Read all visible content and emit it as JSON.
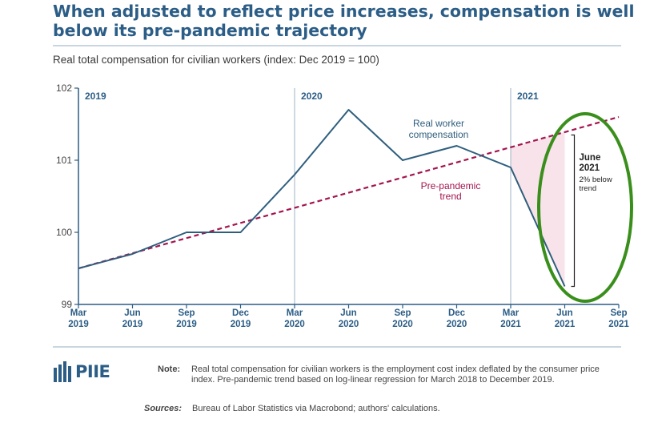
{
  "header": {
    "title": "When adjusted to reflect price increases, compensation is well below its pre-pandemic trajectory",
    "subtitle": "Real total compensation for civilian workers (index: Dec 2019 = 100)"
  },
  "chart_data": {
    "type": "line",
    "title": "",
    "xlabel": "",
    "ylabel": "",
    "ylim": [
      99,
      102
    ],
    "yticks": [
      "99",
      "100",
      "101",
      "102"
    ],
    "xticks": [
      {
        "month": "Mar",
        "year": "2019"
      },
      {
        "month": "Jun",
        "year": "2019"
      },
      {
        "month": "Sep",
        "year": "2019"
      },
      {
        "month": "Dec",
        "year": "2019"
      },
      {
        "month": "Mar",
        "year": "2020"
      },
      {
        "month": "Jun",
        "year": "2020"
      },
      {
        "month": "Sep",
        "year": "2020"
      },
      {
        "month": "Dec",
        "year": "2020"
      },
      {
        "month": "Mar",
        "year": "2021"
      },
      {
        "month": "Jun",
        "year": "2021"
      },
      {
        "month": "Sep",
        "year": "2021"
      }
    ],
    "year_labels": [
      "2019",
      "2020",
      "2021"
    ],
    "series": [
      {
        "name": "Real worker compensation",
        "label_lines": [
          "Real worker",
          "compensation"
        ],
        "color": "#2e5e7e",
        "style": "solid",
        "points": [
          [
            "2019-03",
            99.5
          ],
          [
            "2019-06",
            99.7
          ],
          [
            "2019-09",
            100.0
          ],
          [
            "2019-12",
            100.0
          ],
          [
            "2020-03",
            100.8
          ],
          [
            "2020-06",
            101.7
          ],
          [
            "2020-09",
            101.0
          ],
          [
            "2020-12",
            101.2
          ],
          [
            "2021-03",
            100.9
          ],
          [
            "2021-06",
            99.25
          ]
        ]
      },
      {
        "name": "Pre-pandemic trend",
        "label_lines": [
          "Pre-pandemic",
          "trend"
        ],
        "color": "#a3154f",
        "style": "dashed",
        "points": [
          [
            "2019-03",
            99.5
          ],
          [
            "2021-09",
            101.6
          ]
        ]
      }
    ],
    "annotation": {
      "lines": [
        "June",
        "2021"
      ],
      "detail_lines": [
        "2% below",
        "trend"
      ],
      "at": "2021-06",
      "range": [
        99.25,
        101.35
      ]
    },
    "highlight_color": "#f9e3ea",
    "circle_color": "#3a8f1c",
    "axis_color": "#2b5d86",
    "divider_color": "#9fb3c3"
  },
  "footer": {
    "logo_text": "PIIE",
    "note_label": "Note:",
    "note": "Real total compensation for civilian workers is the employment cost index deflated by the consumer price index. Pre-pandemic trend based on log-linear regression for March 2018 to December 2019.",
    "sources_label": "Sources:",
    "sources": "Bureau of Labor Statistics via Macrobond; authors' calculations."
  }
}
